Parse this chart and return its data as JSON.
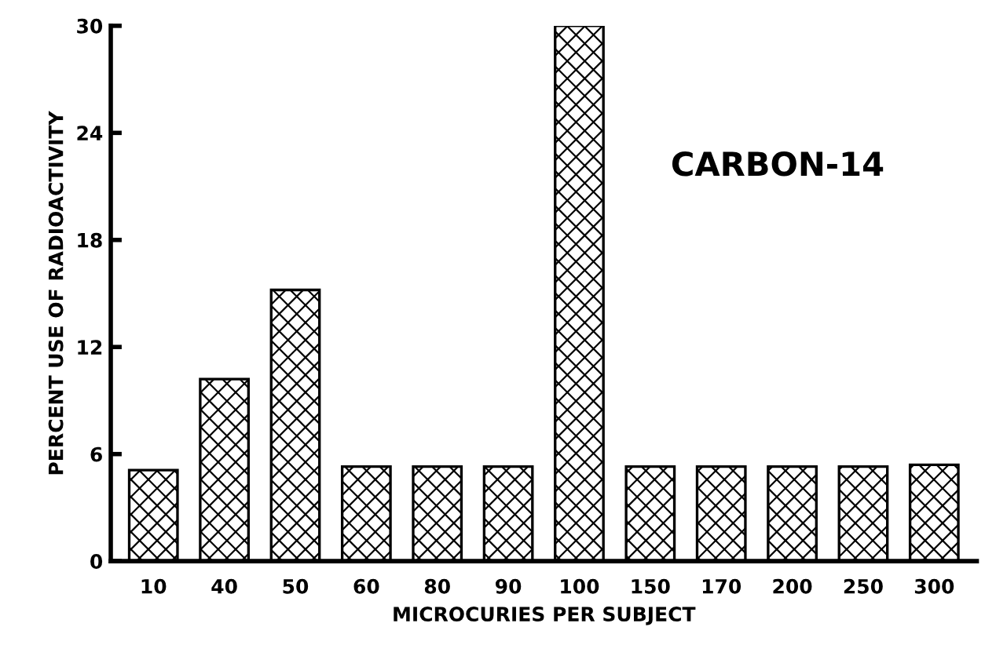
{
  "chart_data": {
    "type": "bar",
    "xlabel": "MICROCURIES PER SUBJECT",
    "ylabel": "PERCENT USE OF RADIOACTIVITY",
    "categories": [
      "10",
      "40",
      "50",
      "60",
      "80",
      "90",
      "100",
      "150",
      "170",
      "200",
      "250",
      "300"
    ],
    "values": [
      5.1,
      10.2,
      15.2,
      5.3,
      5.3,
      5.3,
      30,
      5.3,
      5.3,
      5.3,
      5.3,
      5.4
    ],
    "color": "#000000",
    "ylim": [
      0,
      30
    ],
    "yticks": [
      0,
      6,
      12,
      18,
      24,
      30
    ],
    "grid": false,
    "annotations": [
      "CARBON-14"
    ]
  }
}
